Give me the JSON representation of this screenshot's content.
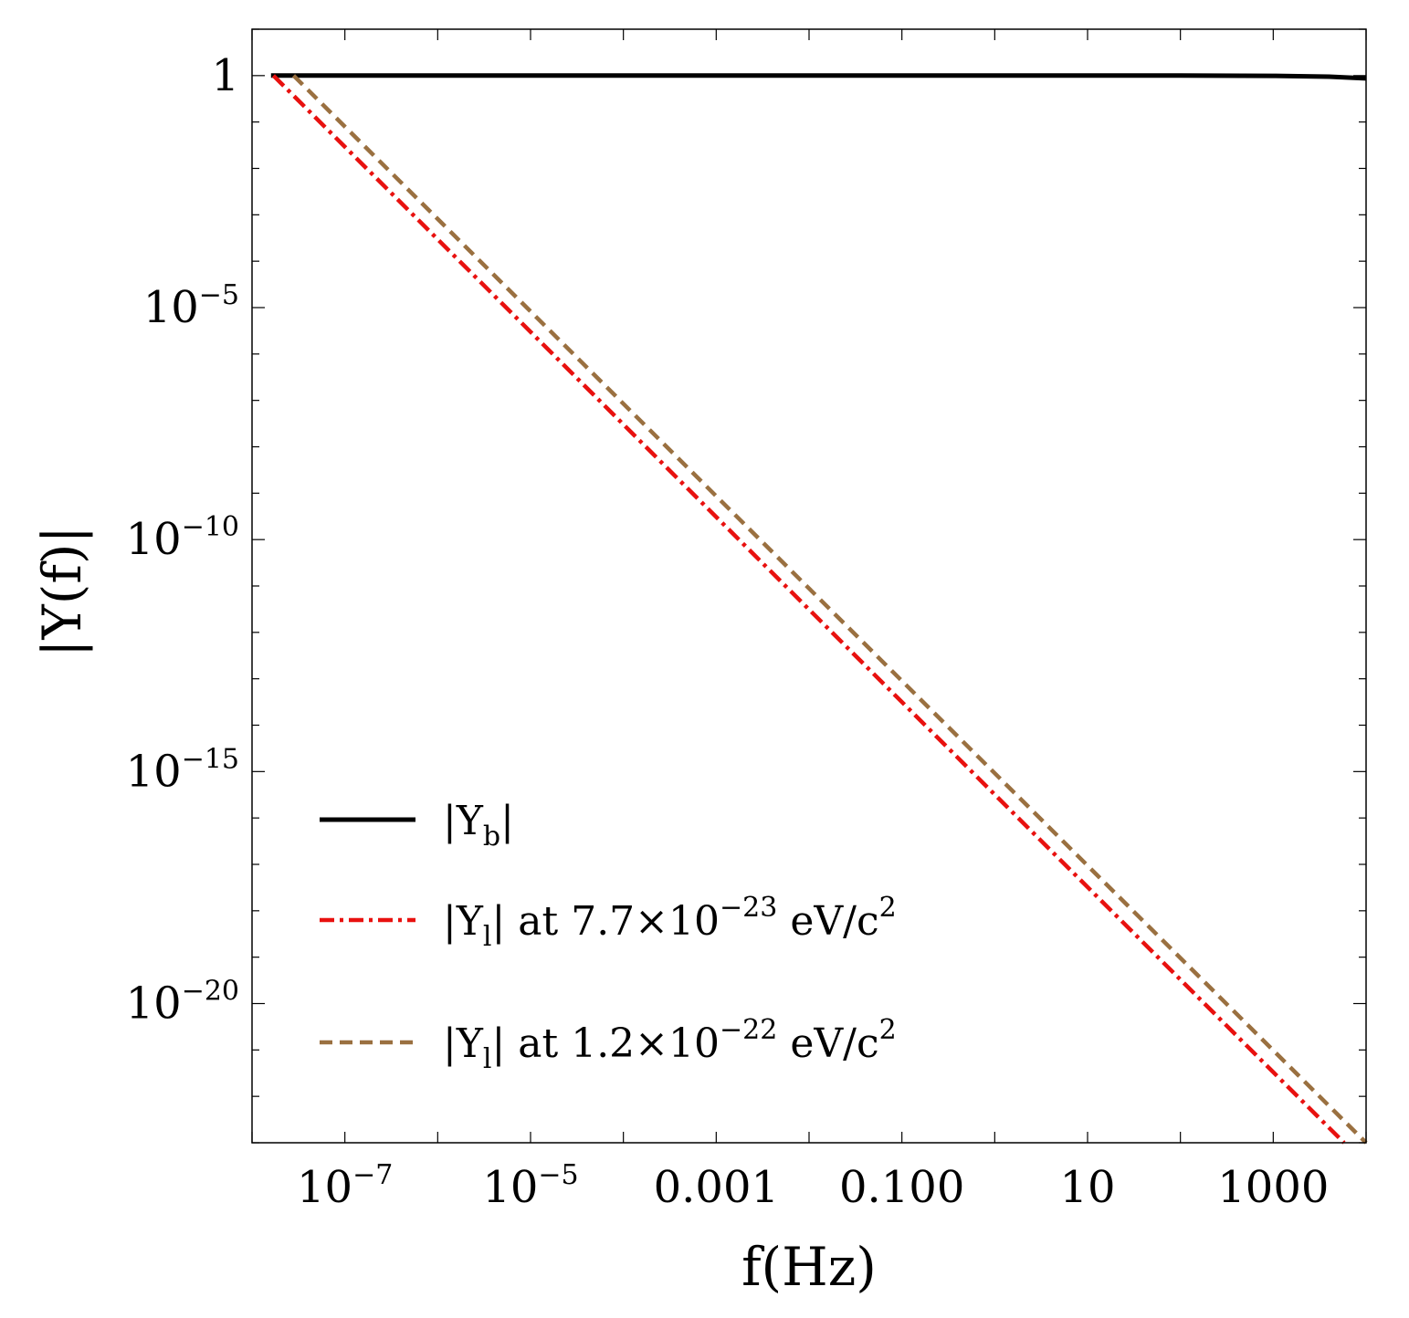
{
  "chart_data": {
    "type": "line",
    "title": "",
    "xlabel": "f(Hz)",
    "ylabel": "|Y(f)|",
    "x_scale": "log",
    "y_scale": "log",
    "xlim": [
      1e-08,
      10000.0
    ],
    "ylim": [
      1e-23,
      10.0
    ],
    "x_ticks": [
      {
        "value": 1e-07,
        "mant": "10",
        "exp": "−7"
      },
      {
        "value": 1e-05,
        "mant": "10",
        "exp": "−5"
      },
      {
        "value": 0.001,
        "mant": "0.001",
        "exp": ""
      },
      {
        "value": 0.1,
        "mant": "0.100",
        "exp": ""
      },
      {
        "value": 10,
        "mant": "10",
        "exp": ""
      },
      {
        "value": 1000,
        "mant": "1000",
        "exp": ""
      }
    ],
    "y_ticks": [
      {
        "value": 1,
        "mant": "1",
        "exp": ""
      },
      {
        "value": 1e-05,
        "mant": "10",
        "exp": "−5"
      },
      {
        "value": 1e-10,
        "mant": "10",
        "exp": "−10"
      },
      {
        "value": 1e-15,
        "mant": "10",
        "exp": "−15"
      },
      {
        "value": 1e-20,
        "mant": "10",
        "exp": "−20"
      }
    ],
    "grid": false,
    "legend_position": "bottom-left",
    "series": [
      {
        "name": "|Yb|",
        "legend": {
          "main": "|Y",
          "sub": "b",
          "post": "|",
          "sup": "",
          "tail": ""
        },
        "color": "#000000",
        "style": "solid",
        "x": [
          1.6e-08,
          1e-06,
          0.0001,
          0.01,
          1,
          100,
          1000,
          4000,
          10000
        ],
        "y": [
          1.0,
          1.0,
          1.0,
          1.0,
          1.0,
          1.0,
          0.99,
          0.95,
          0.87
        ]
      },
      {
        "name": "|Yl| at 7.7×10−23 eV/c2",
        "legend": {
          "main": "|Y",
          "sub": "l",
          "post": "| at 7.7×10",
          "sup": "−23",
          "tail": " eV/c",
          "sup2": "2"
        },
        "color": "#e8110f",
        "style": "dashdot",
        "x": [
          1.7e-08,
          5800
        ],
        "y": [
          1.0,
          1e-23
        ]
      },
      {
        "name": "|Yl| at 1.2×10−22 eV/c2",
        "legend": {
          "main": "|Y",
          "sub": "l",
          "post": "| at 1.2×10",
          "sup": "−22",
          "tail": " eV/c",
          "sup2": "2"
        },
        "color": "#9a7040",
        "style": "dashed",
        "x": [
          2.8e-08,
          10000
        ],
        "y": [
          1.0,
          1e-23
        ]
      }
    ]
  }
}
